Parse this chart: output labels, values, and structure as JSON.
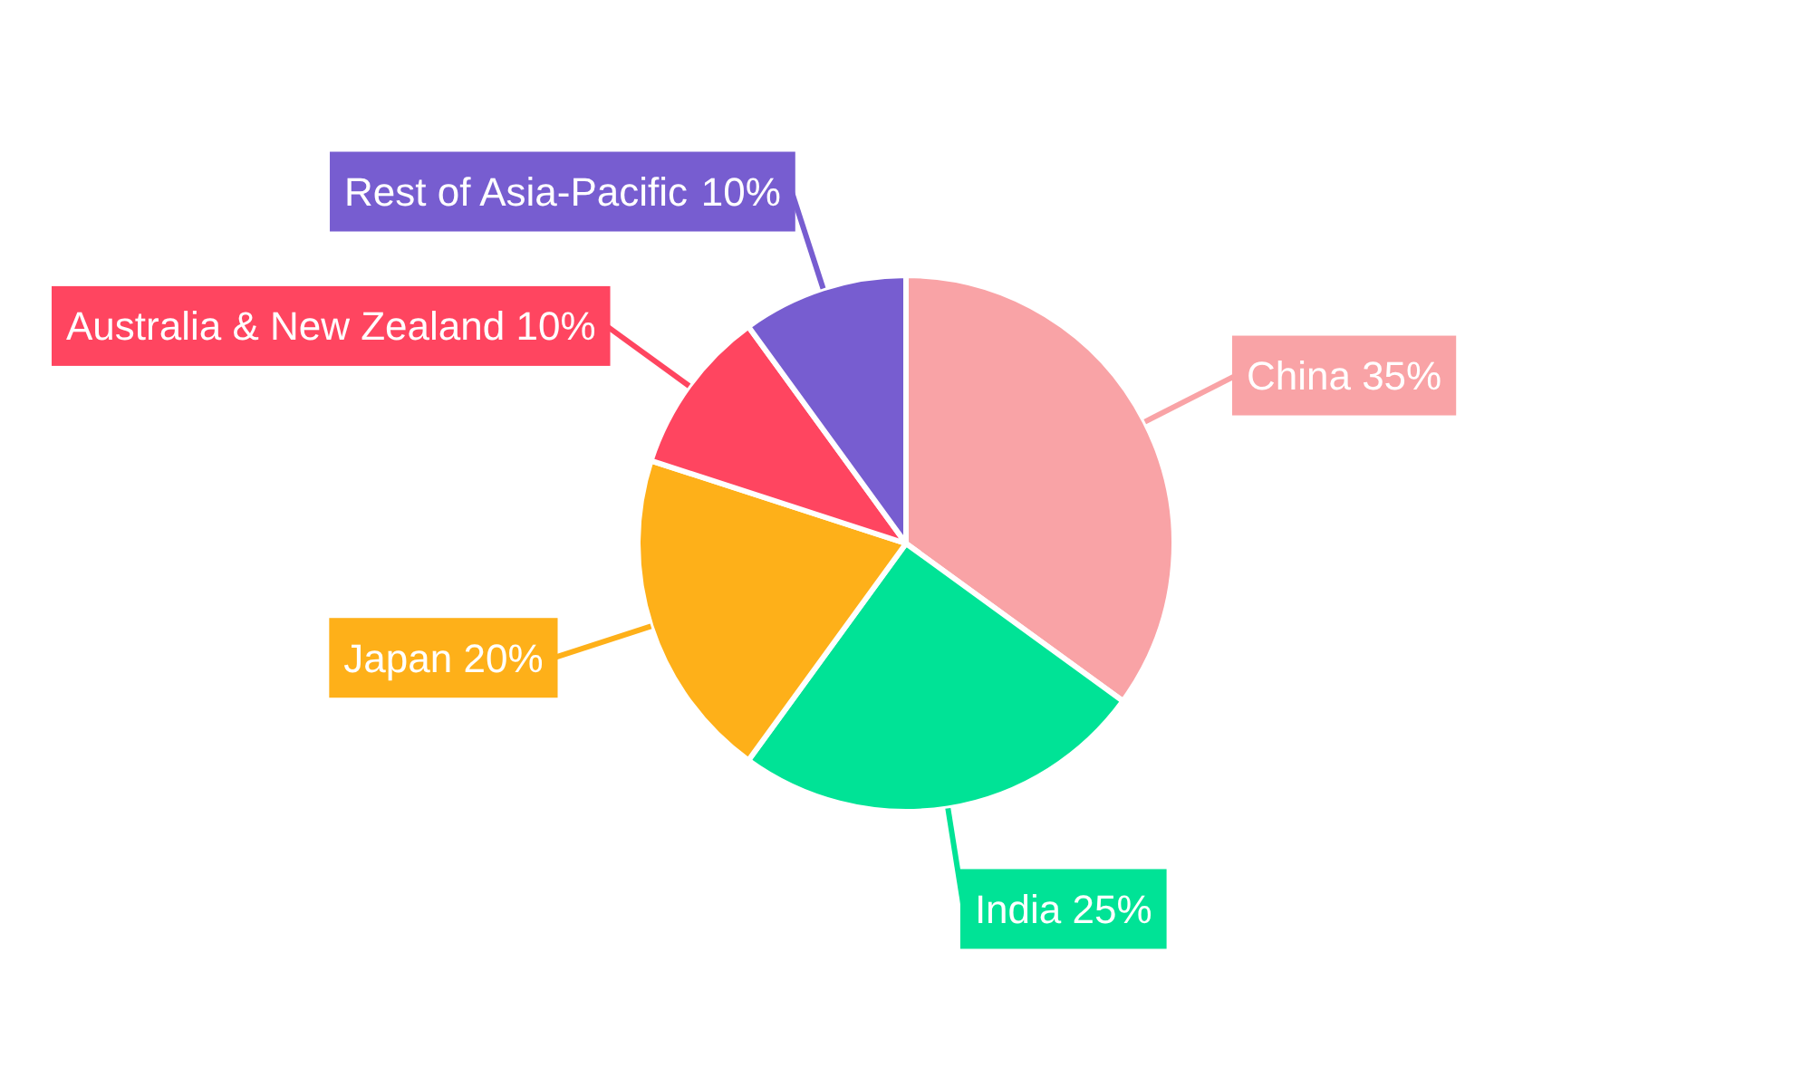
{
  "chart_data": {
    "type": "pie",
    "categories": [
      "China",
      "India",
      "Japan",
      "Australia & New Zealand",
      "Rest of Asia-Pacific"
    ],
    "values": [
      35,
      25,
      20,
      10,
      10
    ],
    "colors": [
      "#f9a3a6",
      "#00e396",
      "#feb019",
      "#ff4560",
      "#775dd0"
    ],
    "value_labels": [
      "35%",
      "25%",
      "20%",
      "10%",
      "10%"
    ]
  }
}
